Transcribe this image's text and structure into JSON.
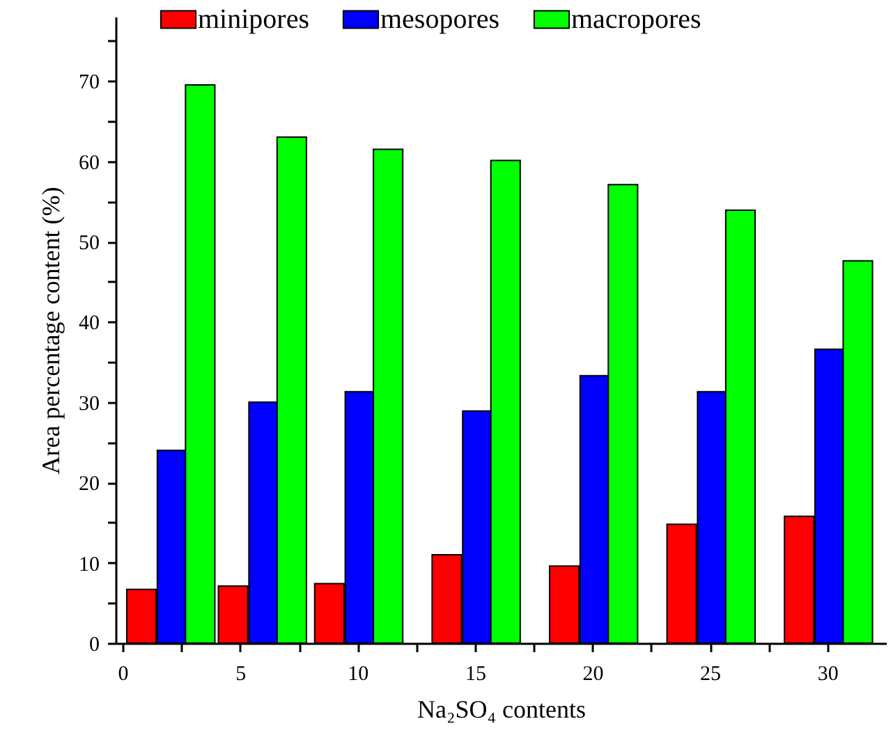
{
  "chart_data": {
    "type": "bar",
    "xlabel": "Na₂SO₄ contents",
    "ylabel": "Area percentage content (%)",
    "series": [
      {
        "name": "minipores",
        "color": "#ff0000",
        "x": [
          0.8,
          4.7,
          8.8,
          13.8,
          18.8,
          23.8,
          28.8
        ],
        "values": [
          6.7,
          7.1,
          7.4,
          11.0,
          9.6,
          14.8,
          15.8
        ]
      },
      {
        "name": "mesopores",
        "color": "#0000ff",
        "x": [
          2.1,
          6.0,
          10.1,
          15.1,
          20.1,
          25.1,
          30.1
        ],
        "values": [
          24.0,
          30.0,
          31.3,
          28.9,
          33.3,
          31.3,
          36.6
        ]
      },
      {
        "name": "macropores",
        "color": "#00ff00",
        "x": [
          3.3,
          7.2,
          11.3,
          16.3,
          21.3,
          26.3,
          31.3
        ],
        "values": [
          69.5,
          63.0,
          61.5,
          60.1,
          57.1,
          53.9,
          47.6
        ]
      }
    ],
    "xlim": [
      -0.3,
      32.5
    ],
    "xticks": [
      0,
      {
        "value": 2.5,
        "label": null
      },
      5,
      {
        "value": 7.5,
        "label": null
      },
      10,
      {
        "value": 12.5,
        "label": null
      },
      15,
      {
        "value": 17.5,
        "label": null
      },
      20,
      {
        "value": 22.5,
        "label": null
      },
      25,
      {
        "value": 27.5,
        "label": null
      },
      30
    ],
    "ylim": [
      0,
      78
    ],
    "yticks": [
      0,
      {
        "value": 5,
        "label": null
      },
      10,
      {
        "value": 15,
        "label": null
      },
      20,
      {
        "value": 25,
        "label": null
      },
      30,
      {
        "value": 35,
        "label": null
      },
      40,
      {
        "value": 45,
        "label": null
      },
      50,
      {
        "value": 55,
        "label": null
      },
      60,
      {
        "value": 65,
        "label": null
      },
      70,
      {
        "value": 75,
        "label": null
      }
    ],
    "grid": false,
    "legend": "top"
  }
}
